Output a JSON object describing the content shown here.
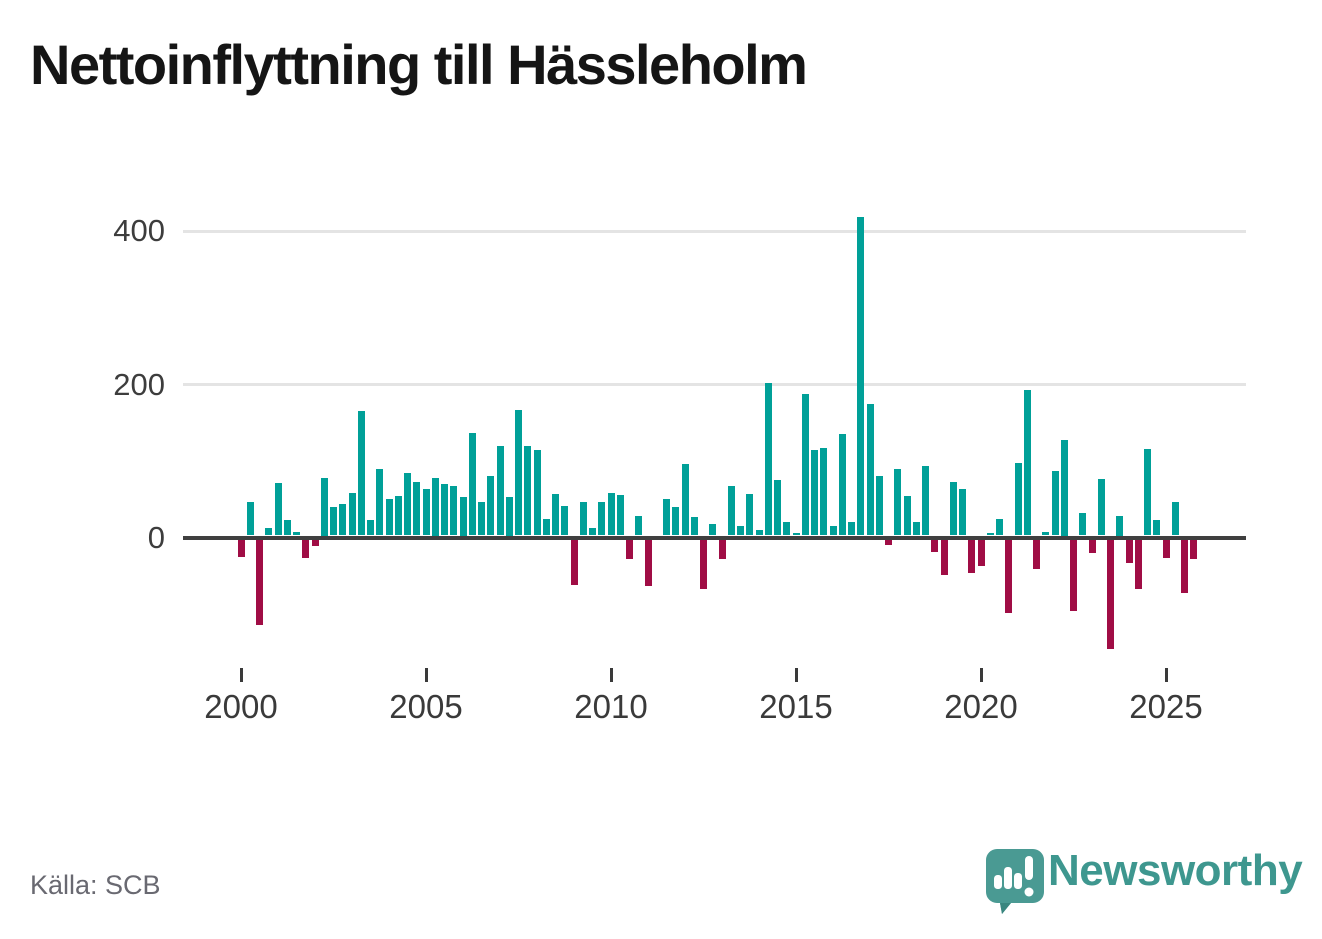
{
  "title": "Nettoinflyttning till Hässleholm",
  "source": "Källa: SCB",
  "logo": {
    "text": "Newsworthy"
  },
  "chart_data": {
    "type": "bar",
    "title": "Nettoinflyttning till Hässleholm",
    "frequency": "quarterly",
    "xlabel": "",
    "ylabel": "",
    "yticks": [
      0,
      200,
      400
    ],
    "xticks": [
      2000,
      2005,
      2010,
      2015,
      2020,
      2025
    ],
    "ylim": [
      -160,
      440
    ],
    "grid": "horizontal, at 200 and 400 only",
    "legend": "none",
    "positive_color": "#00a098",
    "negative_color": "#a00d45",
    "years": [
      {
        "year": 2000,
        "values": [
          -23,
          44,
          -111,
          10
        ]
      },
      {
        "year": 2001,
        "values": [
          68,
          20,
          4,
          -24
        ]
      },
      {
        "year": 2002,
        "values": [
          -8,
          75,
          37,
          41
        ]
      },
      {
        "year": 2003,
        "values": [
          55,
          162,
          20,
          87
        ]
      },
      {
        "year": 2004,
        "values": [
          48,
          51,
          81,
          70
        ]
      },
      {
        "year": 2005,
        "values": [
          61,
          75,
          67,
          64
        ]
      },
      {
        "year": 2006,
        "values": [
          50,
          133,
          44,
          77
        ]
      },
      {
        "year": 2007,
        "values": [
          116,
          50,
          164,
          117
        ]
      },
      {
        "year": 2008,
        "values": [
          111,
          21,
          54,
          39
        ]
      },
      {
        "year": 2009,
        "values": [
          -59,
          44,
          10,
          43
        ]
      },
      {
        "year": 2010,
        "values": [
          56,
          53,
          -26,
          26
        ]
      },
      {
        "year": 2011,
        "values": [
          -61,
          0,
          47,
          37
        ]
      },
      {
        "year": 2012,
        "values": [
          93,
          24,
          -64,
          15
        ]
      },
      {
        "year": 2013,
        "values": [
          -26,
          65,
          12,
          54
        ]
      },
      {
        "year": 2014,
        "values": [
          7,
          199,
          72,
          17
        ]
      },
      {
        "year": 2015,
        "values": [
          3,
          184,
          111,
          114
        ]
      },
      {
        "year": 2016,
        "values": [
          13,
          132,
          17,
          415
        ]
      },
      {
        "year": 2017,
        "values": [
          171,
          78,
          -7,
          86
        ]
      },
      {
        "year": 2018,
        "values": [
          52,
          17,
          91,
          -16
        ]
      },
      {
        "year": 2019,
        "values": [
          -46,
          70,
          61,
          -43
        ]
      },
      {
        "year": 2020,
        "values": [
          -35,
          3,
          22,
          -96
        ]
      },
      {
        "year": 2021,
        "values": [
          95,
          190,
          -39,
          4
        ]
      },
      {
        "year": 2022,
        "values": [
          84,
          125,
          -93,
          29
        ]
      },
      {
        "year": 2023,
        "values": [
          -18,
          74,
          -143,
          25
        ]
      },
      {
        "year": 2024,
        "values": [
          -30,
          -65,
          113,
          20
        ]
      },
      {
        "year": 2025,
        "values": [
          -24,
          43,
          -70,
          -26
        ]
      }
    ]
  }
}
